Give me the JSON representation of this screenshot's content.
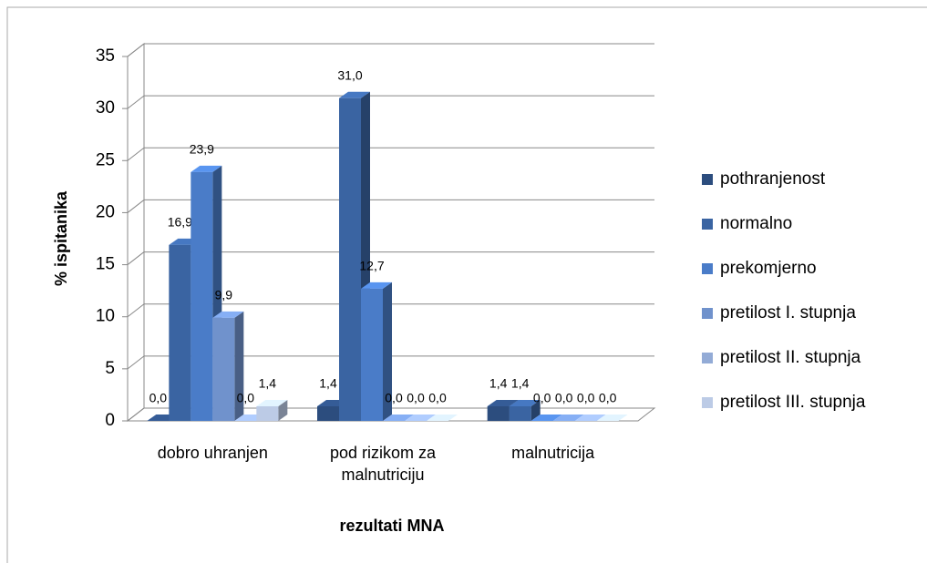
{
  "chart_data": {
    "type": "bar3d",
    "categories": [
      "dobro uhranjen",
      "pod rizikom za malnutriciju",
      "malnutricija"
    ],
    "x_label": "rezultati MNA",
    "y_label": "% ispitanika",
    "ylim": [
      0,
      35
    ],
    "yticks": [
      0,
      5,
      10,
      15,
      20,
      25,
      30,
      35
    ],
    "grid": true,
    "legend": "right",
    "series": [
      {
        "name": "pothranjenost",
        "color": "#2c4d7e",
        "values": [
          0.0,
          1.4,
          1.4
        ],
        "value_labels": [
          "0,0",
          "1,4",
          "1,4"
        ]
      },
      {
        "name": "normalno",
        "color": "#3a64a2",
        "values": [
          16.9,
          31.0,
          1.4
        ],
        "value_labels": [
          "16,9",
          "31,0",
          "1,4"
        ]
      },
      {
        "name": "prekomjerno",
        "color": "#4a7cc8",
        "values": [
          23.9,
          12.7,
          0.0
        ],
        "value_labels": [
          "23,9",
          "12,7",
          "0,0"
        ]
      },
      {
        "name": "pretilost I. stupnja",
        "color": "#7092cc",
        "values": [
          9.9,
          0.0,
          0.0
        ],
        "value_labels": [
          "9,9",
          "0,0",
          "0,0"
        ]
      },
      {
        "name": "pretilost II. stupnja",
        "color": "#93abd6",
        "values": [
          0.0,
          0.0,
          0.0
        ],
        "value_labels": [
          "0,0",
          "0,0",
          "0,0"
        ]
      },
      {
        "name": "pretilost III. stupnja",
        "color": "#bccbe6",
        "values": [
          1.4,
          0.0,
          0.0
        ],
        "value_labels": [
          "1,4",
          "0,0",
          "0,0"
        ]
      }
    ]
  }
}
